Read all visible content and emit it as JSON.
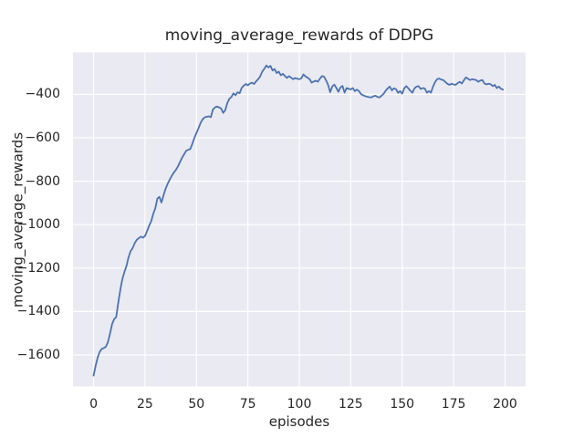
{
  "figure": {
    "background_color": "#ffffff",
    "axes_background_color": "#eaeaf2",
    "grid_color": "#ffffff",
    "text_color": "#262626",
    "line_color": "#4c72b0"
  },
  "chart_data": {
    "type": "line",
    "title": "moving_average_rewards of DDPG",
    "xlabel": "episodes",
    "ylabel": "moving_average_rewards",
    "xlim": [
      -10,
      210
    ],
    "ylim": [
      -1745,
      -207
    ],
    "xticks": [
      0,
      25,
      50,
      75,
      100,
      125,
      150,
      175,
      200
    ],
    "yticks": [
      -400,
      -600,
      -800,
      -1000,
      -1200,
      -1400,
      -1600
    ],
    "xtick_labels": [
      "0",
      "25",
      "50",
      "75",
      "100",
      "125",
      "150",
      "175",
      "200"
    ],
    "ytick_labels": [
      "−400",
      "−600",
      "−800",
      "−1000",
      "−1200",
      "−1400",
      "−1600"
    ],
    "grid": true,
    "legend": false,
    "series": [
      {
        "name": "moving_average_rewards",
        "color": "#4c72b0",
        "x": [
          0,
          1,
          2,
          3,
          4,
          5,
          6,
          7,
          8,
          9,
          10,
          11,
          12,
          13,
          14,
          15,
          16,
          17,
          18,
          19,
          20,
          21,
          22,
          23,
          24,
          25,
          26,
          27,
          28,
          29,
          30,
          31,
          32,
          33,
          34,
          35,
          36,
          37,
          38,
          39,
          40,
          41,
          42,
          43,
          44,
          45,
          46,
          47,
          48,
          49,
          50,
          51,
          52,
          53,
          54,
          55,
          56,
          57,
          58,
          59,
          60,
          61,
          62,
          63,
          64,
          65,
          66,
          67,
          68,
          69,
          70,
          71,
          72,
          73,
          74,
          75,
          76,
          77,
          78,
          79,
          80,
          81,
          82,
          83,
          84,
          85,
          86,
          87,
          88,
          89,
          90,
          91,
          92,
          93,
          94,
          95,
          96,
          97,
          98,
          99,
          100,
          101,
          102,
          103,
          104,
          105,
          106,
          107,
          108,
          109,
          110,
          111,
          112,
          113,
          114,
          115,
          116,
          117,
          118,
          119,
          120,
          121,
          122,
          123,
          124,
          125,
          126,
          127,
          128,
          129,
          130,
          131,
          132,
          133,
          134,
          135,
          136,
          137,
          138,
          139,
          140,
          141,
          142,
          143,
          144,
          145,
          146,
          147,
          148,
          149,
          150,
          151,
          152,
          153,
          154,
          155,
          156,
          157,
          158,
          159,
          160,
          161,
          162,
          163,
          164,
          165,
          166,
          167,
          168,
          169,
          170,
          171,
          172,
          173,
          174,
          175,
          176,
          177,
          178,
          179,
          180,
          181,
          182,
          183,
          184,
          185,
          186,
          187,
          188,
          189,
          190,
          191,
          192,
          193,
          194,
          195,
          196,
          197,
          198,
          199
        ],
        "y": [
          -1695,
          -1650,
          -1612,
          -1585,
          -1572,
          -1568,
          -1562,
          -1540,
          -1502,
          -1458,
          -1435,
          -1425,
          -1360,
          -1300,
          -1250,
          -1218,
          -1190,
          -1150,
          -1122,
          -1108,
          -1085,
          -1070,
          -1062,
          -1055,
          -1060,
          -1052,
          -1030,
          -1005,
          -985,
          -950,
          -925,
          -880,
          -872,
          -898,
          -865,
          -835,
          -812,
          -793,
          -775,
          -760,
          -748,
          -732,
          -712,
          -692,
          -676,
          -660,
          -655,
          -652,
          -628,
          -600,
          -578,
          -556,
          -532,
          -515,
          -506,
          -503,
          -501,
          -505,
          -470,
          -460,
          -456,
          -460,
          -465,
          -485,
          -473,
          -440,
          -420,
          -412,
          -395,
          -404,
          -390,
          -395,
          -370,
          -360,
          -352,
          -358,
          -350,
          -346,
          -352,
          -340,
          -330,
          -317,
          -295,
          -282,
          -267,
          -276,
          -269,
          -290,
          -283,
          -302,
          -295,
          -312,
          -305,
          -315,
          -324,
          -316,
          -323,
          -330,
          -325,
          -328,
          -330,
          -326,
          -308,
          -317,
          -323,
          -330,
          -346,
          -341,
          -337,
          -342,
          -328,
          -316,
          -318,
          -335,
          -356,
          -390,
          -364,
          -355,
          -370,
          -388,
          -368,
          -361,
          -392,
          -371,
          -374,
          -377,
          -371,
          -385,
          -378,
          -385,
          -399,
          -404,
          -408,
          -411,
          -413,
          -414,
          -409,
          -406,
          -412,
          -414,
          -406,
          -397,
          -383,
          -372,
          -364,
          -382,
          -372,
          -376,
          -393,
          -385,
          -397,
          -372,
          -362,
          -372,
          -384,
          -392,
          -372,
          -364,
          -362,
          -375,
          -371,
          -373,
          -392,
          -385,
          -392,
          -364,
          -343,
          -330,
          -327,
          -332,
          -334,
          -343,
          -351,
          -356,
          -351,
          -354,
          -356,
          -348,
          -342,
          -350,
          -335,
          -322,
          -328,
          -334,
          -330,
          -332,
          -334,
          -342,
          -336,
          -334,
          -350,
          -354,
          -351,
          -353,
          -362,
          -356,
          -371,
          -364,
          -374,
          -378
        ]
      }
    ]
  }
}
